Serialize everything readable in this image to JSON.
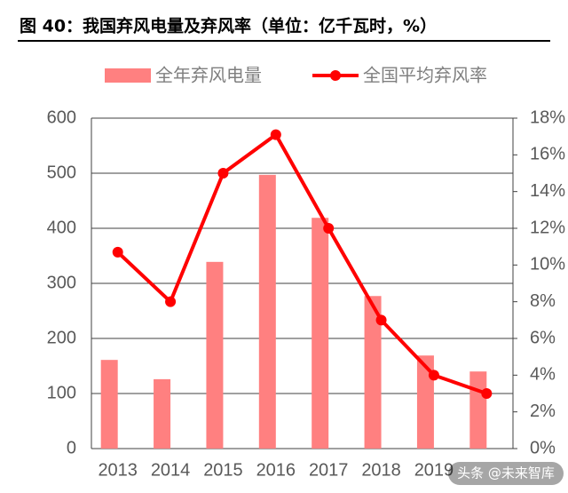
{
  "chart_data": {
    "type": "bar",
    "title": "图 40：我国弃风电量及弃风率（单位：亿千瓦时，%）",
    "categories": [
      "2013",
      "2014",
      "2015",
      "2016",
      "2017",
      "2018",
      "2019",
      null
    ],
    "series": [
      {
        "name": "全年弃风电量",
        "color": "#ff8080",
        "type": "bar",
        "values": [
          161,
          126,
          339,
          497,
          419,
          277,
          169,
          140
        ]
      },
      {
        "name": "全国平均弃风率",
        "color": "#ff0000",
        "type": "line",
        "axis": "y2",
        "values": [
          10.7,
          8.0,
          15.0,
          17.1,
          12.0,
          7.0,
          4.0,
          3.0
        ]
      }
    ],
    "ylim": [
      0,
      600
    ],
    "yticks": [
      0,
      100,
      200,
      300,
      400,
      500,
      600
    ],
    "y2lim": [
      0,
      18
    ],
    "y2ticks": [
      {
        "value": 0,
        "label": "0%"
      },
      {
        "value": 2,
        "label": "2%"
      },
      {
        "value": 4,
        "label": "4%"
      },
      {
        "value": 6,
        "label": "6%"
      },
      {
        "value": 8,
        "label": "8%"
      },
      {
        "value": 10,
        "label": "10%"
      },
      {
        "value": 12,
        "label": "12%"
      },
      {
        "value": 14,
        "label": "14%"
      },
      {
        "value": 16,
        "label": "16%"
      },
      {
        "value": 18,
        "label": "18%"
      }
    ],
    "grid": true,
    "annotation": "头条 @未来智库"
  }
}
